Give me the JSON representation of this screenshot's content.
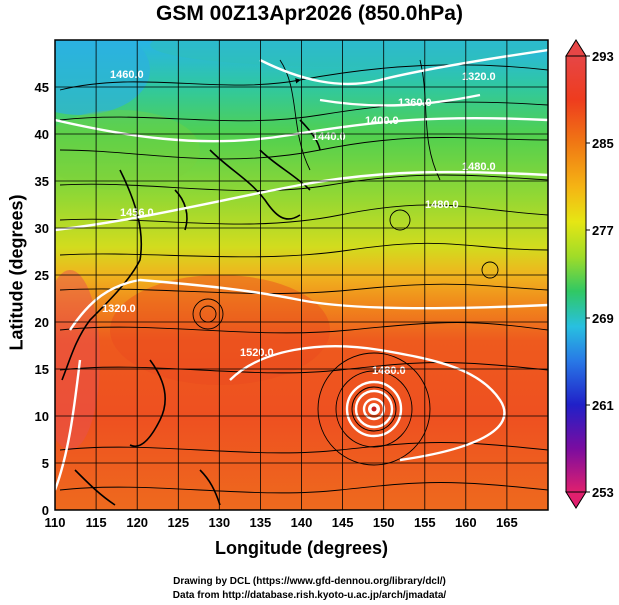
{
  "title": "GSM 00Z13Apr2026 (850.0hPa)",
  "xlabel": "Longitude (degrees)",
  "ylabel": "Latitude  (degrees)",
  "credits": [
    "Drawing by DCL (https://www.gfd-dennou.org/library/dcl/)",
    "Data from http://database.rish.kyoto-u.ac.jp/arch/jmadata/"
  ],
  "map": {
    "lon_range": [
      110,
      170
    ],
    "lat_range": [
      0,
      50
    ],
    "x_ticks": [
      "110",
      "115",
      "120",
      "125",
      "130",
      "135",
      "140",
      "145",
      "150",
      "155",
      "160",
      "165"
    ],
    "y_ticks": [
      "0",
      "5",
      "10",
      "15",
      "20",
      "25",
      "30",
      "35",
      "40",
      "45"
    ],
    "contour_labels": [
      "1460.0",
      "1320.0",
      "1360.0",
      "1400.0",
      "1440.0",
      "1480.0",
      "1320.0",
      "1520.0",
      "1480.0",
      "1480.0",
      "1456.0"
    ],
    "cyclone_center": {
      "lon": 148.5,
      "lat": 12.5
    }
  },
  "colorbar": {
    "ticks": [
      "293",
      "285",
      "277",
      "269",
      "261",
      "253"
    ],
    "colors": [
      "#e0206e",
      "#7a0ca0",
      "#2020c8",
      "#2878e6",
      "#28c0e0",
      "#30c864",
      "#5ad23c",
      "#a0dc28",
      "#e6e614",
      "#f5b414",
      "#f07814",
      "#ee3c1e",
      "#e64646"
    ]
  },
  "colors": {
    "contour": "#ffffff",
    "streamline": "#000000"
  }
}
